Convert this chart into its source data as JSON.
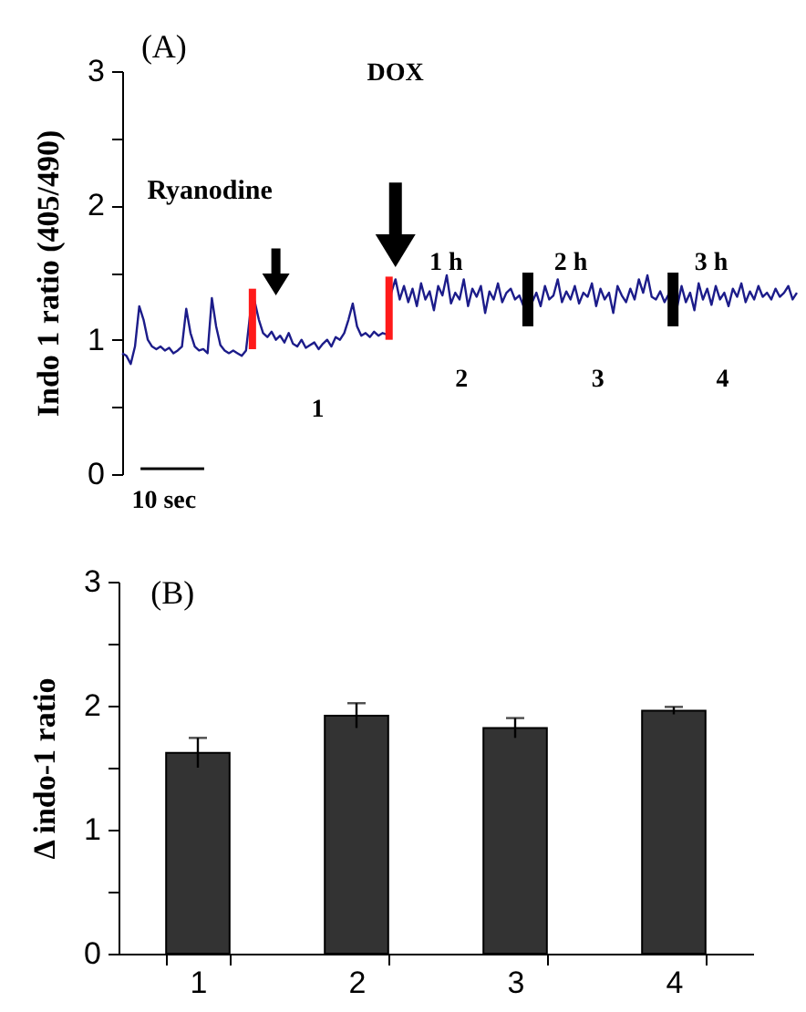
{
  "chart_data": [
    {
      "type": "line",
      "ylabel": "Indo 1 ratio (405/490)",
      "categories": [
        null,
        null,
        null,
        null,
        null,
        null,
        null,
        null,
        null,
        null,
        null,
        null,
        null,
        null,
        null,
        null,
        null,
        null,
        null,
        null,
        null,
        null,
        null,
        null,
        null,
        null,
        null,
        null,
        null,
        null,
        null,
        null,
        null,
        null,
        null,
        null,
        null,
        null,
        null,
        null,
        null,
        null,
        null,
        null,
        null,
        null,
        null,
        null,
        null,
        null,
        null,
        null,
        null,
        null,
        null,
        null,
        null,
        null,
        null,
        null,
        null,
        null,
        null,
        null,
        null,
        null,
        null,
        null,
        null,
        null,
        null,
        null,
        null,
        null,
        null,
        null,
        null,
        null,
        null,
        null,
        null,
        null,
        null,
        null,
        null,
        null,
        null,
        null,
        null,
        null,
        null,
        null,
        null,
        null,
        null,
        null,
        null,
        null,
        null,
        null,
        null,
        null,
        null,
        null,
        null,
        null,
        null,
        null,
        null,
        null,
        null,
        null,
        null,
        null,
        null,
        null,
        null,
        null,
        null,
        null,
        null,
        null,
        null,
        null,
        null,
        null,
        null,
        null,
        null,
        null,
        null,
        null,
        null,
        null,
        null,
        null,
        null,
        null,
        null,
        null,
        null,
        null,
        null,
        null,
        null,
        null,
        null,
        null,
        null,
        null,
        null,
        null,
        null,
        null,
        null,
        null,
        null,
        null,
        null
      ],
      "values": [
        0.9,
        0.88,
        0.82,
        0.95,
        1.25,
        1.15,
        1.0,
        0.95,
        0.93,
        0.95,
        0.92,
        0.94,
        0.9,
        0.92,
        0.95,
        1.23,
        1.05,
        0.95,
        0.92,
        0.93,
        0.9,
        1.31,
        1.1,
        0.96,
        0.92,
        0.9,
        0.92,
        0.9,
        0.88,
        0.92,
        1.2,
        1.29,
        1.15,
        1.05,
        1.02,
        1.06,
        1.0,
        1.03,
        0.98,
        1.05,
        0.97,
        0.95,
        1.0,
        0.94,
        0.96,
        0.98,
        0.93,
        0.97,
        1.0,
        0.95,
        1.02,
        1.0,
        1.05,
        1.15,
        1.27,
        1.1,
        1.03,
        1.05,
        1.02,
        1.06,
        1.03,
        1.05,
        1.04,
        1.35,
        1.45,
        1.3,
        1.4,
        1.28,
        1.38,
        1.25,
        1.42,
        1.3,
        1.36,
        1.22,
        1.4,
        1.33,
        1.48,
        1.27,
        1.35,
        1.3,
        1.45,
        1.25,
        1.38,
        1.32,
        1.4,
        1.2,
        1.36,
        1.3,
        1.42,
        1.28,
        1.35,
        1.38,
        1.3,
        1.33,
        1.25,
        1.3,
        1.28,
        1.35,
        1.25,
        1.4,
        1.3,
        1.33,
        1.45,
        1.28,
        1.36,
        1.3,
        1.4,
        1.27,
        1.35,
        1.32,
        1.42,
        1.25,
        1.38,
        1.3,
        1.35,
        1.2,
        1.4,
        1.33,
        1.28,
        1.38,
        1.3,
        1.45,
        1.35,
        1.48,
        1.32,
        1.3,
        1.36,
        1.28,
        1.34,
        1.3,
        1.25,
        1.4,
        1.28,
        1.35,
        1.22,
        1.42,
        1.3,
        1.38,
        1.26,
        1.4,
        1.3,
        1.35,
        1.25,
        1.38,
        1.32,
        1.42,
        1.28,
        1.36,
        1.3,
        1.4,
        1.32,
        1.35,
        1.3,
        1.38,
        1.32,
        1.35,
        1.4,
        1.3,
        1.35
      ],
      "color": "#1c1c8a",
      "ylim": [
        0,
        3
      ],
      "yticks": [
        0,
        {
          "value": 0.5,
          "label": null
        },
        1,
        {
          "value": 1.5,
          "label": null
        },
        2,
        {
          "value": 2.5,
          "label": null
        },
        3
      ],
      "tick_labels": "y",
      "annotations": [
        "(A)",
        "DOX",
        "Ryanodine",
        "1 h",
        "2 h",
        "3 h",
        "1",
        "2",
        "3",
        "4",
        "10 sec"
      ]
    },
    {
      "type": "bar",
      "ylabel": "Δ indo-1 ratio",
      "categories": [
        "1",
        "2",
        "3",
        "4"
      ],
      "values": [
        1.62,
        1.92,
        1.82,
        1.96
      ],
      "errors": [
        0.12,
        0.1,
        0.08,
        0.03
      ],
      "color": "#333333",
      "ylim": [
        0,
        3
      ],
      "yticks": [
        0,
        {
          "value": 0.5,
          "label": null
        },
        1,
        {
          "value": 1.5,
          "label": null
        },
        2,
        {
          "value": 2.5,
          "label": null
        },
        3
      ],
      "annotations": [
        "(B)"
      ]
    }
  ]
}
